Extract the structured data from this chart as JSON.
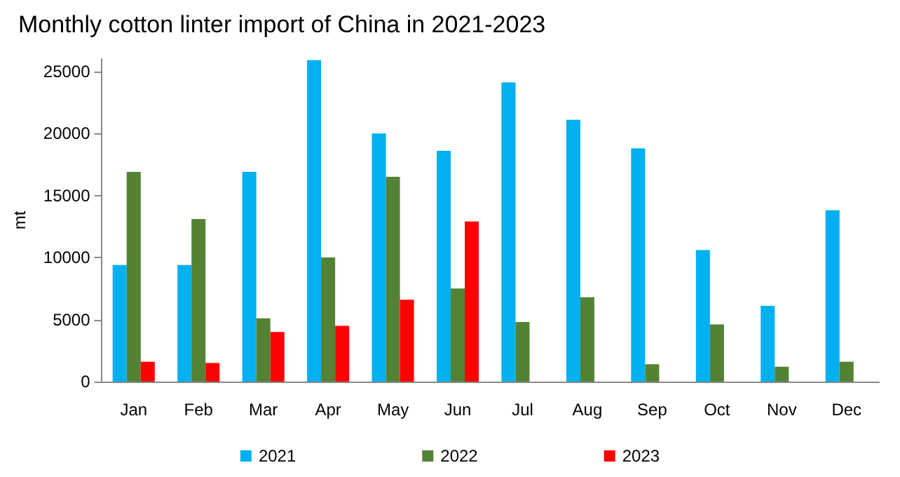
{
  "chart_data": {
    "type": "bar",
    "title": "Monthly cotton linter import of China in 2021-2023",
    "ylabel": "mt",
    "categories": [
      "Jan",
      "Feb",
      "Mar",
      "Apr",
      "May",
      "Jun",
      "Jul",
      "Aug",
      "Sep",
      "Oct",
      "Nov",
      "Dec"
    ],
    "series": [
      {
        "name": "2021",
        "color": "#00b0f0",
        "values": [
          9400,
          9400,
          16900,
          25900,
          20000,
          18600,
          24100,
          21100,
          18800,
          10600,
          6100,
          13800
        ]
      },
      {
        "name": "2022",
        "color": "#548235",
        "values": [
          16900,
          13100,
          5100,
          10000,
          16500,
          7500,
          4800,
          6800,
          1400,
          4600,
          1200,
          1600
        ]
      },
      {
        "name": "2023",
        "color": "#ff0000",
        "values": [
          1600,
          1500,
          4000,
          4500,
          6600,
          12900,
          null,
          null,
          null,
          null,
          null,
          null
        ]
      }
    ],
    "ylim": [
      0,
      26000
    ],
    "yticks": [
      0,
      5000,
      10000,
      15000,
      20000,
      25000
    ],
    "grid": false,
    "legend": "bottom"
  }
}
